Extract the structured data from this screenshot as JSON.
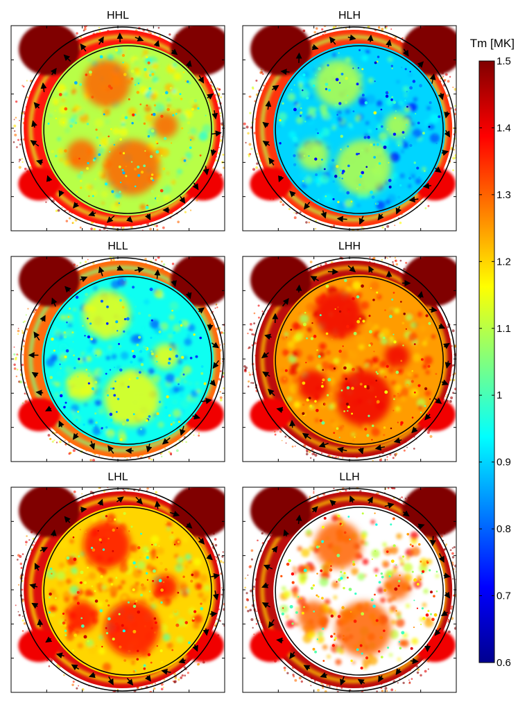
{
  "chart_data": {
    "type": "heatmap",
    "title": "",
    "panels": [
      {
        "title": "HHL",
        "background": "1.10",
        "outer_ring": "1.38",
        "corner_patches": "1.50",
        "inner_hot_spots": "1.30"
      },
      {
        "title": "HLH",
        "background": "0.90",
        "outer_ring": "1.35",
        "corner_patches": "1.50",
        "inner_hot_spots": "1.10"
      },
      {
        "title": "HLL",
        "background": "0.95",
        "outer_ring": "1.30",
        "corner_patches": "1.50",
        "inner_hot_spots": "1.15"
      },
      {
        "title": "LHH",
        "background": "1.25",
        "outer_ring": "1.45",
        "corner_patches": "1.50",
        "inner_hot_spots": "1.40"
      },
      {
        "title": "LHL",
        "background": "1.20",
        "outer_ring": "1.42",
        "corner_patches": "1.50",
        "inner_hot_spots": "1.38"
      },
      {
        "title": "LLH",
        "background": "saturated (>1.5)",
        "outer_ring": "1.45",
        "corner_patches": "1.50",
        "inner_hot_spots": "1.30"
      }
    ],
    "colorbar": {
      "label": "Tm [MK]",
      "min": 0.6,
      "max": 1.5,
      "ticks": [
        "0.6",
        "0.7",
        "0.8",
        "0.9",
        "1",
        "1.1",
        "1.2",
        "1.3",
        "1.4",
        "1.5"
      ],
      "colormap": "jet"
    },
    "overlay": {
      "circles": "two concentric-ish circles per panel",
      "arrows": "flow vectors distributed between the circles"
    }
  }
}
